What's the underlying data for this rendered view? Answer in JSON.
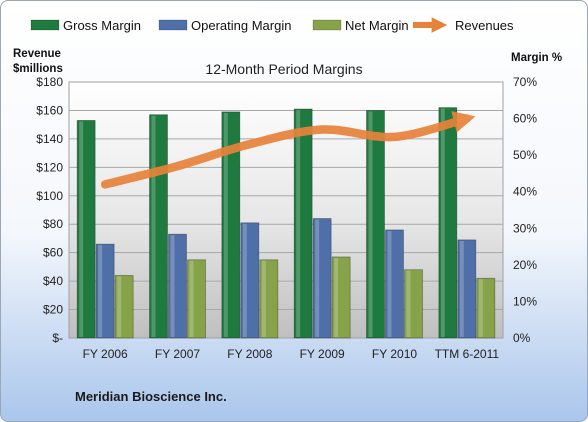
{
  "chart_data": {
    "type": "bar",
    "title": "12-Month Period Margins",
    "categories": [
      "FY 2006",
      "FY 2007",
      "FY 2008",
      "FY 2009",
      "FY 2010",
      "TTM 6-2011"
    ],
    "series": [
      {
        "name": "Gross Margin",
        "type": "bar",
        "axis": "left",
        "color": "#1f7a3f",
        "values": [
          153,
          157,
          159,
          161,
          160,
          162
        ]
      },
      {
        "name": "Operating Margin",
        "type": "bar",
        "axis": "left",
        "color": "#4f6fa8",
        "values": [
          66,
          73,
          81,
          84,
          76,
          69
        ]
      },
      {
        "name": "Net Margin",
        "type": "bar",
        "axis": "left",
        "color": "#86a34a",
        "values": [
          44,
          55,
          55,
          57,
          48,
          42
        ]
      },
      {
        "name": "Revenues",
        "type": "line",
        "axis": "right",
        "color": "#e8823a",
        "values": [
          42,
          47,
          53,
          57,
          55,
          60
        ]
      }
    ],
    "ylabel_left": "Revenue\n$millions",
    "ylabel_right": "Margin %",
    "ylim_left": [
      0,
      180
    ],
    "ylim_right": [
      0,
      70
    ],
    "yticks_left": [
      "$-",
      "$20",
      "$40",
      "$60",
      "$80",
      "$100",
      "$120",
      "$140",
      "$160",
      "$180"
    ],
    "yticks_right": [
      "0%",
      "10%",
      "20%",
      "30%",
      "40%",
      "50%",
      "60%",
      "70%"
    ],
    "grid": true,
    "legend_position": "top"
  },
  "company_name": "Meridian Bioscience Inc."
}
